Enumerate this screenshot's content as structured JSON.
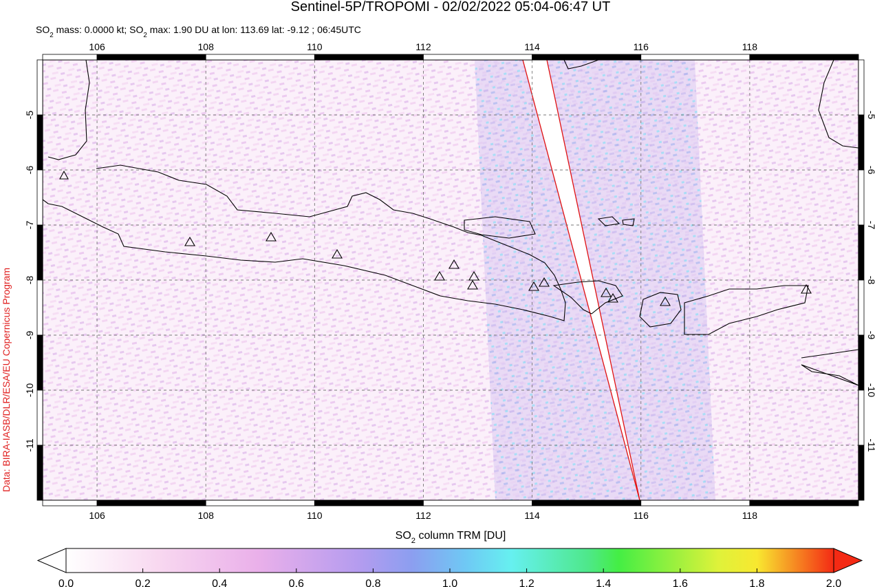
{
  "title": "Sentinel-5P/TROPOMI - 02/02/2022 05:04-06:47 UT",
  "subtitle": [
    "SO",
    "2",
    " mass: 0.0000 kt; SO",
    "2",
    " max: 1.90 DU at lon: 113.69 lat: -9.12 ; 06:45UTC"
  ],
  "credit": "Data: BIRA-IASB/DLR/ESA/EU Copernicus Program",
  "map": {
    "xlim": [
      105,
      120
    ],
    "ylim": [
      -12,
      -4
    ],
    "xticks": [
      106,
      108,
      110,
      112,
      114,
      116,
      118
    ],
    "yticks": [
      -5,
      -6,
      -7,
      -8,
      -9,
      -10,
      -11
    ]
  },
  "colorbar": {
    "label": [
      "SO",
      "2",
      " column TRM [DU]"
    ],
    "lim": [
      0,
      2
    ],
    "ticks": [
      {
        "value": 0,
        "label": "0.0"
      },
      {
        "value": 0.2,
        "label": "0.2"
      },
      {
        "value": 0.4,
        "label": "0.4"
      },
      {
        "value": 0.6,
        "label": "0.6"
      },
      {
        "value": 0.8,
        "label": "0.8"
      },
      {
        "value": 1,
        "label": "1.0"
      },
      {
        "value": 1.2,
        "label": "1.2"
      },
      {
        "value": 1.4,
        "label": "1.4"
      },
      {
        "value": 1.6,
        "label": "1.6"
      },
      {
        "value": 1.8,
        "label": "1.8"
      },
      {
        "value": 2,
        "label": "2.0"
      }
    ]
  }
}
